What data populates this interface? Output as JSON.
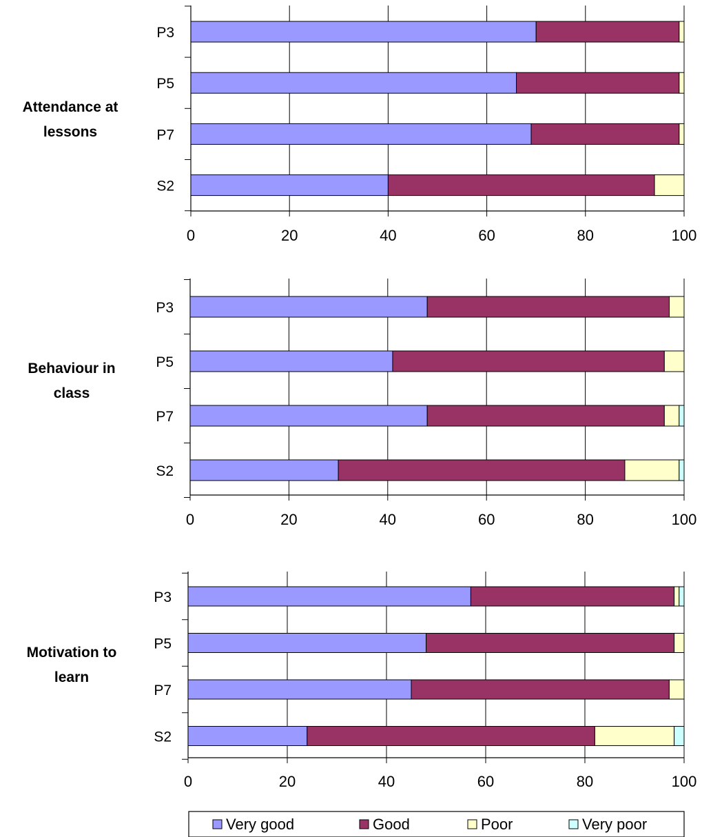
{
  "chart_data": {
    "type": "bar",
    "orientation": "horizontal",
    "stacked": true,
    "xlim": [
      0,
      100
    ],
    "xticks": [
      "0",
      "20",
      "40",
      "60",
      "80",
      "100"
    ],
    "grid": true,
    "legend_position": "bottom",
    "series_names": [
      "Very good",
      "Good",
      "Poor",
      "Very poor"
    ],
    "colors": [
      "#9999ff",
      "#993366",
      "#ffffcc",
      "#ccffff"
    ],
    "panels": [
      {
        "title": "Attendance at lessons",
        "title_lines": [
          "Attendance at",
          "lessons"
        ],
        "categories": [
          "P3",
          "P5",
          "P7",
          "S2"
        ],
        "series": [
          {
            "name": "Very good",
            "values": [
              70,
              66,
              69,
              40
            ]
          },
          {
            "name": "Good",
            "values": [
              29,
              33,
              30,
              54
            ]
          },
          {
            "name": "Poor",
            "values": [
              1,
              1,
              1,
              6
            ]
          },
          {
            "name": "Very poor",
            "values": [
              0,
              0,
              0,
              0
            ]
          }
        ]
      },
      {
        "title": "Behaviour in class",
        "title_lines": [
          "Behaviour in",
          "class"
        ],
        "categories": [
          "P3",
          "P5",
          "P7",
          "S2"
        ],
        "series": [
          {
            "name": "Very good",
            "values": [
              48,
              41,
              48,
              30
            ]
          },
          {
            "name": "Good",
            "values": [
              49,
              55,
              48,
              58
            ]
          },
          {
            "name": "Poor",
            "values": [
              3,
              4,
              3,
              11
            ]
          },
          {
            "name": "Very poor",
            "values": [
              0,
              0,
              1,
              1
            ]
          }
        ]
      },
      {
        "title": "Motivation to learn",
        "title_lines": [
          "Motivation to",
          "learn"
        ],
        "categories": [
          "P3",
          "P5",
          "P7",
          "S2"
        ],
        "series": [
          {
            "name": "Very good",
            "values": [
              57,
              48,
              45,
              24
            ]
          },
          {
            "name": "Good",
            "values": [
              41,
              50,
              52,
              58
            ]
          },
          {
            "name": "Poor",
            "values": [
              1,
              2,
              3,
              16
            ]
          },
          {
            "name": "Very poor",
            "values": [
              1,
              0,
              0,
              2
            ]
          }
        ]
      }
    ]
  }
}
